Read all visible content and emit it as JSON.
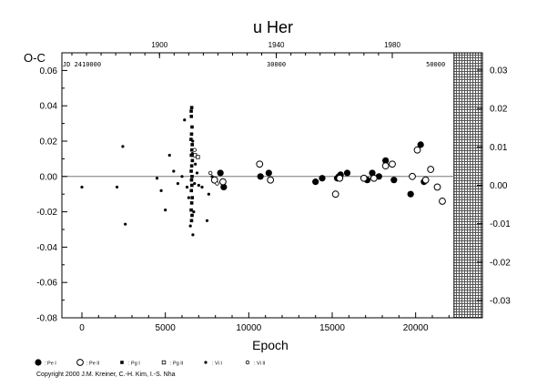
{
  "chart_data": {
    "type": "scatter",
    "title": "u Her",
    "xlabel": "Epoch",
    "ylabel": "O-C",
    "xlim": [
      -1200,
      24000
    ],
    "ylim": [
      -0.08,
      0.07
    ],
    "y2lim": [
      -0.0345,
      0.0345
    ],
    "x_ticks": [
      0,
      5000,
      10000,
      15000,
      20000
    ],
    "x_tick_labels": [
      "0",
      "5000",
      "10000",
      "15000",
      "20000"
    ],
    "y_ticks": [
      -0.08,
      -0.06,
      -0.04,
      -0.02,
      0.0,
      0.02,
      0.04,
      0.06
    ],
    "y_tick_labels": [
      "-0.08",
      "-0.06",
      "-0.04",
      "-0.02",
      "0.00",
      "0.02",
      "0.04",
      "0.06"
    ],
    "y2_ticks": [
      -0.03,
      -0.02,
      -0.01,
      0.0,
      0.01,
      0.02,
      0.03
    ],
    "y2_tick_labels": [
      "-0.03",
      "-0.02",
      "-0.01",
      "0.00",
      "0.01",
      "0.02",
      "0.03"
    ],
    "top_year_ticks": [
      {
        "epoch": 4650,
        "label": "1900"
      },
      {
        "epoch": 11650,
        "label": "1940"
      },
      {
        "epoch": 18600,
        "label": "1980"
      }
    ],
    "top_jd_labels": [
      {
        "epoch": 0,
        "label": "JD 2410000"
      },
      {
        "epoch": 11650,
        "label": "30000"
      },
      {
        "epoch": 21200,
        "label": "50000"
      }
    ],
    "hatched_region_start": 22300,
    "zero_line": 0.0,
    "grid": false,
    "legend_position": "bottom-left",
    "series": [
      {
        "name": ": Pe I",
        "marker": "filled-circle-large",
        "x": [
          8300,
          8500,
          10700,
          11200,
          14000,
          14400,
          15300,
          15400,
          15500,
          15900,
          17100,
          17400,
          17800,
          18200,
          18700,
          19700,
          20300,
          20500
        ],
        "y": [
          0.002,
          -0.006,
          0.0,
          0.002,
          -0.003,
          -0.001,
          -0.001,
          0.0,
          0.001,
          0.002,
          -0.002,
          0.002,
          0.0,
          0.009,
          -0.002,
          -0.01,
          0.018,
          -0.003
        ]
      },
      {
        "name": ": Pe II",
        "marker": "open-circle-large",
        "x": [
          7950,
          8450,
          10650,
          11300,
          15200,
          15450,
          16900,
          17500,
          18200,
          18600,
          19800,
          20100,
          20600,
          20900,
          21300,
          21600
        ],
        "y": [
          -0.002,
          -0.003,
          0.007,
          -0.002,
          -0.01,
          -0.001,
          -0.001,
          -0.001,
          0.006,
          0.007,
          0.0,
          0.015,
          -0.002,
          0.004,
          -0.006,
          -0.014
        ]
      },
      {
        "name": ": Pg I",
        "marker": "filled-square-small",
        "x": [
          6550,
          6580,
          6560,
          6600,
          6570,
          6540,
          6610,
          6590,
          6560,
          6620,
          6580,
          6550,
          6600,
          6570,
          6590,
          6560,
          6610,
          6580,
          6550,
          6600,
          6570
        ],
        "y": [
          0.037,
          0.039,
          0.034,
          0.028,
          0.024,
          0.021,
          0.018,
          0.015,
          0.012,
          0.009,
          0.006,
          0.003,
          0.0,
          -0.002,
          -0.005,
          -0.008,
          -0.012,
          -0.015,
          -0.019,
          -0.022,
          -0.025
        ]
      },
      {
        "name": ": Pg II",
        "marker": "open-square-small",
        "x": [
          6780,
          6950
        ],
        "y": [
          0.012,
          0.011
        ]
      },
      {
        "name": ": Vi I",
        "marker": "filled-dot-small",
        "x": [
          0,
          2100,
          2450,
          2600,
          4500,
          4750,
          5000,
          5250,
          5500,
          5750,
          6000,
          6150,
          6300,
          6400,
          6500,
          6650,
          6700,
          6750,
          6800,
          6900,
          7000,
          7200,
          7500,
          7600,
          7800,
          6620,
          6640
        ],
        "y": [
          -0.006,
          -0.006,
          0.017,
          -0.027,
          -0.001,
          -0.008,
          -0.019,
          0.012,
          0.003,
          -0.004,
          0.0,
          0.032,
          -0.006,
          -0.012,
          -0.028,
          -0.033,
          -0.02,
          -0.004,
          0.007,
          0.002,
          -0.005,
          -0.006,
          -0.025,
          -0.01,
          0.0,
          0.013,
          0.02
        ]
      },
      {
        "name": ": Vi II",
        "marker": "open-dot-small",
        "x": [
          6750,
          7700,
          8100
        ],
        "y": [
          0.015,
          0.002,
          -0.004
        ]
      }
    ]
  },
  "copyright": "Copyright 2000 J.M. Kreiner, C.-H. Kim, I.-S. Nha"
}
